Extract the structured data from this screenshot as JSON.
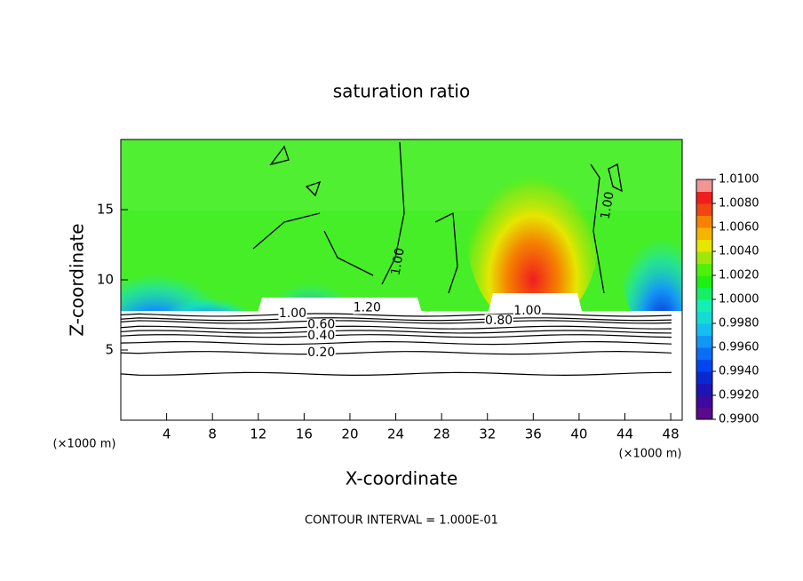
{
  "chart_data": {
    "type": "contour",
    "title": "saturation ratio",
    "x_label": "X-coordinate",
    "y_label": "Z-coordinate",
    "x_unit_label": "(×1000 m)",
    "footer": "CONTOUR INTERVAL = 1.000E-01",
    "xlim": [
      0,
      49
    ],
    "xticks": [
      4,
      8,
      12,
      16,
      20,
      24,
      28,
      32,
      36,
      40,
      44,
      48
    ],
    "ylim": [
      0,
      20
    ],
    "yticks": [
      5,
      10,
      15
    ],
    "zlim": [
      0.99,
      1.01
    ],
    "colors": [
      "#5a0a8c",
      "#3c0aa0",
      "#1e14b4",
      "#0a28d2",
      "#0046f0",
      "#0a6ef5",
      "#1496f5",
      "#14bef0",
      "#14dcd2",
      "#14f0b4",
      "#14f064",
      "#1ef014",
      "#50f00a",
      "#a0e60a",
      "#e6e600",
      "#f5b400",
      "#f58200",
      "#f04614",
      "#f01e1e",
      "#f09696"
    ],
    "colorbar_ticks": [
      {
        "value": 0.99,
        "label": "0.9900"
      },
      {
        "value": 0.992,
        "label": "0.9920"
      },
      {
        "value": 0.994,
        "label": "0.9940"
      },
      {
        "value": 0.996,
        "label": "0.9960"
      },
      {
        "value": 0.998,
        "label": "0.9980"
      },
      {
        "value": 1.0,
        "label": "1.0000"
      },
      {
        "value": 1.002,
        "label": "1.0020"
      },
      {
        "value": 1.004,
        "label": "1.0040"
      },
      {
        "value": 1.006,
        "label": "1.0060"
      },
      {
        "value": 1.008,
        "label": "1.0080"
      },
      {
        "value": 1.01,
        "label": "1.0100"
      }
    ],
    "contour_labels": [
      {
        "value": 1.0,
        "label": "1.00"
      },
      {
        "value": 1.2,
        "label": "1.20"
      },
      {
        "value": 0.6,
        "label": "0.60"
      },
      {
        "value": 0.4,
        "label": "0.40"
      },
      {
        "value": 0.2,
        "label": "0.20"
      },
      {
        "value": 0.8,
        "label": "0.80"
      },
      {
        "value": 1.0,
        "label": "1.00"
      },
      {
        "value": 1.0,
        "label": "1.00"
      },
      {
        "value": 1.0,
        "label": "1.00"
      }
    ]
  }
}
